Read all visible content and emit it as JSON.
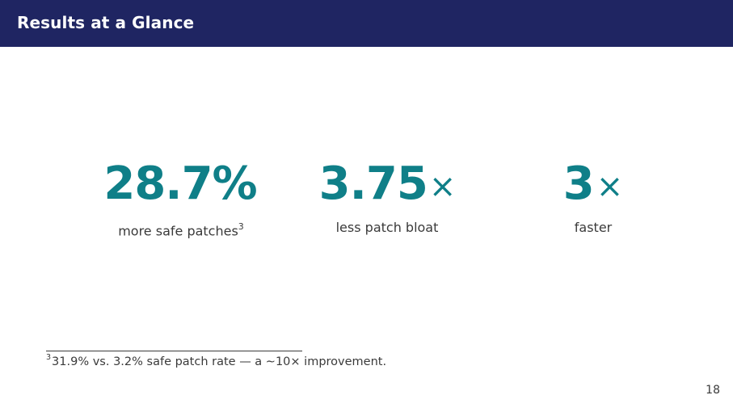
{
  "header": {
    "title": "Results at a Glance"
  },
  "stats": [
    {
      "value": "28.7%",
      "suffix": "",
      "label": "more safe patches",
      "footnote_ref": "3"
    },
    {
      "value": "3.75",
      "suffix": "×",
      "label": "less patch bloat",
      "footnote_ref": ""
    },
    {
      "value": "3",
      "suffix": "×",
      "label": "faster",
      "footnote_ref": ""
    }
  ],
  "footnote": {
    "marker": "3",
    "text": "31.9% vs. 3.2% safe patch rate — a ∼10× improvement."
  },
  "page_number": "18",
  "colors": {
    "header_bg": "#1f2562",
    "accent": "#0f7f88",
    "text": "#3a3a3a"
  }
}
